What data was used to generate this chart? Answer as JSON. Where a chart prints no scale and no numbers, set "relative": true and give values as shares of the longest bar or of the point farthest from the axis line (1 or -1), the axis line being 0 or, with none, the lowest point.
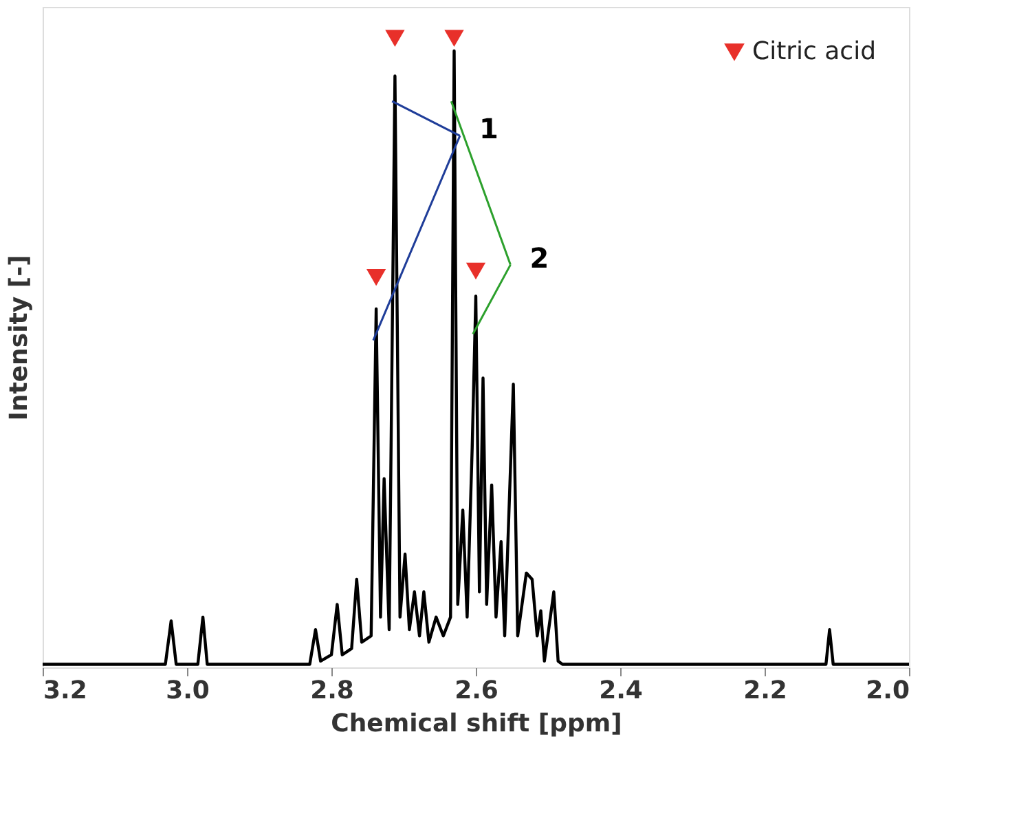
{
  "chart_data": {
    "type": "line",
    "relative": true,
    "xlabel": "Chemical shift [ppm]",
    "ylabel": "Intensity [-]",
    "xlim": [
      3.2,
      2.0
    ],
    "xticks": [
      3.2,
      {
        "value": 3.0,
        "label": "3.0"
      },
      2.8,
      2.6,
      2.4,
      2.2,
      {
        "value": 2.0,
        "label": "2.0"
      }
    ],
    "legend": "top right",
    "grid": false,
    "series": [
      {
        "type": "line",
        "color": "#000000",
        "x": [
          3.2,
          3.03,
          3.022,
          3.015,
          2.985,
          2.978,
          2.972,
          2.83,
          2.822,
          2.815,
          2.8,
          2.792,
          2.785,
          2.772,
          2.765,
          2.758,
          2.745,
          2.738,
          2.732,
          2.727,
          2.72,
          2.712,
          2.705,
          2.698,
          2.692,
          2.685,
          2.678,
          2.672,
          2.665,
          2.655,
          2.645,
          2.635,
          2.63,
          2.625,
          2.618,
          2.612,
          2.605,
          2.6,
          2.595,
          2.59,
          2.585,
          2.578,
          2.572,
          2.565,
          2.56,
          2.548,
          2.542,
          2.53,
          2.522,
          2.515,
          2.51,
          2.505,
          2.492,
          2.486,
          2.48,
          2.115,
          2.11,
          2.105,
          2.0
        ],
        "values": [
          0.005,
          0.005,
          0.074,
          0.005,
          0.005,
          0.08,
          0.005,
          0.005,
          0.06,
          0.01,
          0.02,
          0.1,
          0.02,
          0.03,
          0.14,
          0.04,
          0.05,
          0.57,
          0.08,
          0.3,
          0.06,
          0.94,
          0.08,
          0.18,
          0.06,
          0.12,
          0.05,
          0.12,
          0.04,
          0.08,
          0.05,
          0.08,
          0.98,
          0.1,
          0.25,
          0.08,
          0.35,
          0.59,
          0.12,
          0.46,
          0.1,
          0.29,
          0.08,
          0.2,
          0.05,
          0.45,
          0.05,
          0.15,
          0.14,
          0.05,
          0.09,
          0.01,
          0.12,
          0.01,
          0.005,
          0.005,
          0.06,
          0.005,
          0.005
        ]
      },
      {
        "type": "scatter",
        "name": "Citric acid",
        "color": "#e8302a",
        "marker": "triangle",
        "x": [
          2.712,
          2.63,
          2.738,
          2.6
        ],
        "values": [
          1.0,
          1.0,
          0.62,
          0.63
        ]
      }
    ],
    "annotations": [
      "1",
      "2"
    ]
  }
}
